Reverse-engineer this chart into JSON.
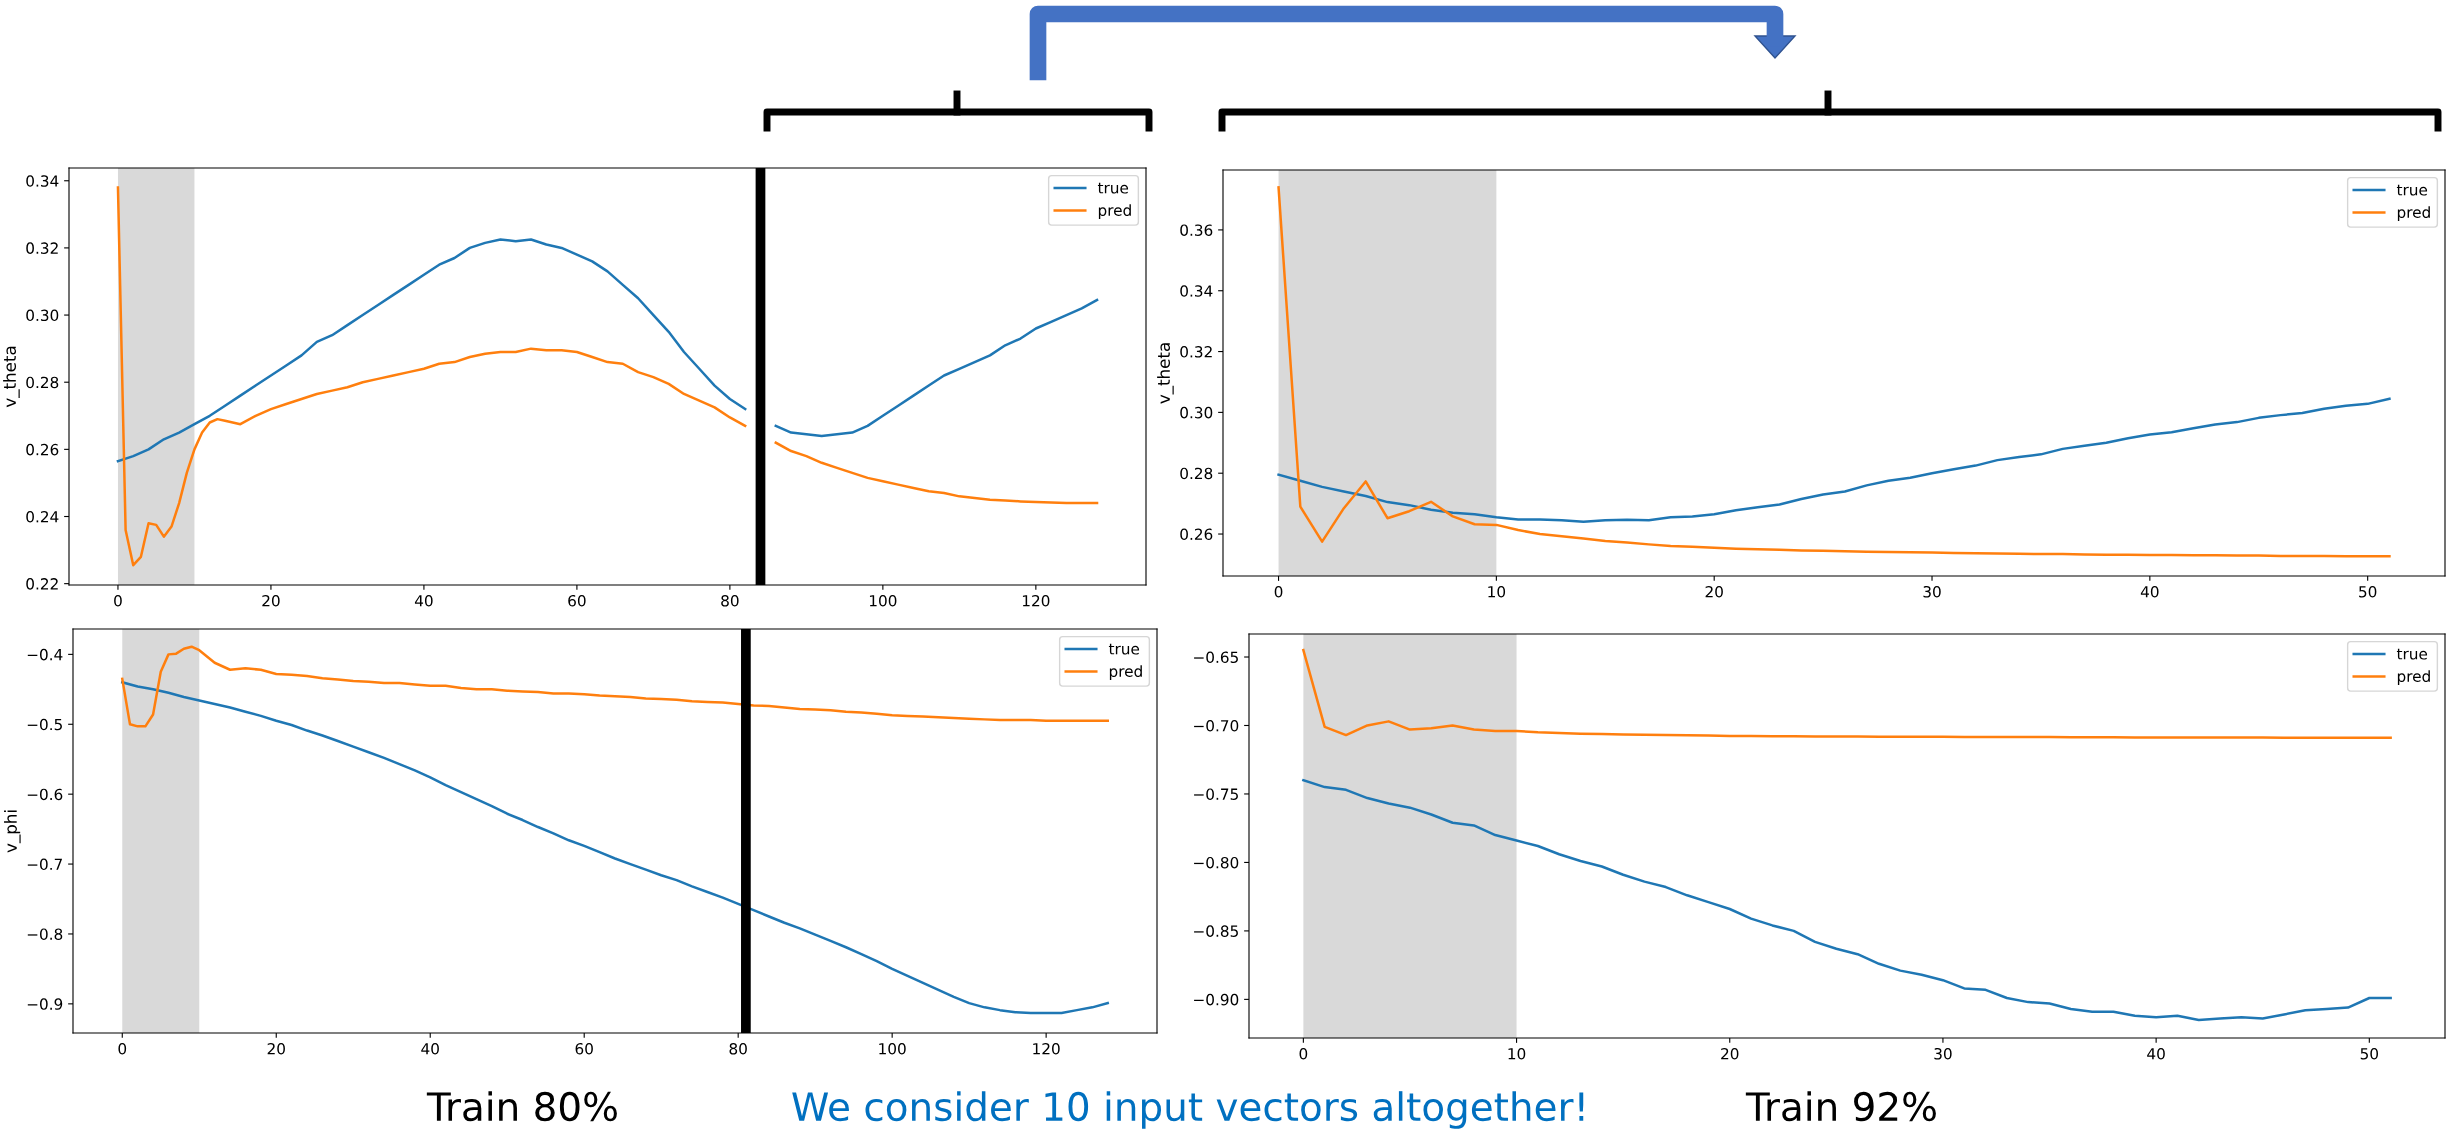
{
  "chart_data": [
    {
      "type": "line",
      "ylabel": "v_theta",
      "xlim": [
        -6.4,
        134.4
      ],
      "ylim": [
        0.2196,
        0.3438
      ],
      "xticks": [
        0,
        20,
        40,
        60,
        80,
        100,
        120
      ],
      "yticks": [
        0.22,
        0.24,
        0.26,
        0.28,
        {
          "value": 0.3,
          "label": "0.30"
        },
        0.32,
        0.34
      ],
      "grid": false,
      "legend": "top right",
      "bands": [
        {
          "axis": "x",
          "from": 0,
          "to": 10,
          "color": "#d9d9d9"
        }
      ],
      "ref_lines": [
        {
          "axis": "x",
          "value": 84,
          "color": "#000000"
        }
      ],
      "series": [
        {
          "name": "true",
          "color": "#1f77b4",
          "x": [
            0,
            2,
            4,
            6,
            8,
            10,
            12,
            14,
            16,
            18,
            20,
            22,
            24,
            26,
            28,
            30,
            32,
            34,
            36,
            38,
            40,
            42,
            44,
            46,
            48,
            50,
            52,
            54,
            56,
            58,
            60,
            62,
            64,
            66,
            68,
            70,
            72,
            74,
            76,
            78,
            80,
            82,
            84,
            86,
            88,
            90,
            92,
            94,
            96,
            98,
            100,
            102,
            104,
            106,
            108,
            110,
            112,
            114,
            116,
            118,
            120,
            122,
            124,
            126,
            128
          ],
          "values": [
            0.2565,
            0.258,
            0.26,
            0.263,
            0.265,
            0.2675,
            0.27,
            0.273,
            0.276,
            0.279,
            0.282,
            0.285,
            0.288,
            0.292,
            0.294,
            0.297,
            0.3,
            0.303,
            0.306,
            0.309,
            0.312,
            0.315,
            0.317,
            0.32,
            0.3215,
            0.3225,
            0.322,
            0.3225,
            0.321,
            0.32,
            0.318,
            0.316,
            0.313,
            0.309,
            0.305,
            0.3,
            0.295,
            0.289,
            0.284,
            0.279,
            0.275,
            0.272,
            null,
            0.267,
            0.265,
            0.2645,
            0.264,
            0.2645,
            0.265,
            0.267,
            0.27,
            0.273,
            0.276,
            0.279,
            0.282,
            0.284,
            0.286,
            0.288,
            0.291,
            0.293,
            0.296,
            0.298,
            0.3,
            0.302,
            0.3045
          ]
        },
        {
          "name": "pred",
          "color": "#ff7f0e",
          "x": [
            0,
            1,
            2,
            3,
            4,
            5,
            6,
            7,
            8,
            9,
            10,
            11,
            12,
            13,
            14,
            16,
            18,
            20,
            22,
            24,
            26,
            28,
            30,
            32,
            34,
            36,
            38,
            40,
            42,
            44,
            46,
            48,
            50,
            52,
            54,
            56,
            58,
            60,
            62,
            64,
            66,
            68,
            70,
            72,
            74,
            76,
            78,
            80,
            82,
            84,
            86,
            88,
            90,
            92,
            94,
            96,
            98,
            100,
            102,
            104,
            106,
            108,
            110,
            112,
            114,
            116,
            118,
            120,
            122,
            124,
            126,
            128
          ],
          "values": [
            0.338,
            0.236,
            0.2255,
            0.228,
            0.238,
            0.2375,
            0.234,
            0.237,
            0.244,
            0.253,
            0.26,
            0.265,
            0.268,
            0.269,
            0.2685,
            0.2675,
            0.27,
            0.272,
            0.2735,
            0.275,
            0.2765,
            0.2775,
            0.2785,
            0.28,
            0.281,
            0.282,
            0.283,
            0.284,
            0.2855,
            0.286,
            0.2875,
            0.2885,
            0.289,
            0.289,
            0.29,
            0.2895,
            0.2895,
            0.289,
            0.2875,
            0.286,
            0.2855,
            0.283,
            0.2815,
            0.2795,
            0.2765,
            0.2745,
            0.2725,
            0.2695,
            0.267,
            null,
            0.262,
            0.2595,
            0.258,
            0.256,
            0.2545,
            0.253,
            0.2515,
            0.2505,
            0.2495,
            0.2485,
            0.2475,
            0.247,
            0.246,
            0.2455,
            0.245,
            0.2448,
            0.2445,
            0.2443,
            0.2442,
            0.244,
            0.244,
            0.244
          ]
        }
      ]
    },
    {
      "type": "line",
      "ylabel": "v_theta",
      "xlim": [
        -2.55,
        53.55
      ],
      "ylim": [
        0.2462,
        0.3797
      ],
      "xticks": [
        0,
        10,
        20,
        30,
        40,
        50
      ],
      "yticks": [
        0.26,
        0.28,
        {
          "value": 0.3,
          "label": "0.30"
        },
        0.32,
        0.34,
        0.36
      ],
      "grid": false,
      "legend": "top right",
      "bands": [
        {
          "axis": "x",
          "from": 0,
          "to": 10,
          "color": "#d9d9d9"
        }
      ],
      "x": [
        0,
        1,
        2,
        3,
        4,
        5,
        6,
        7,
        8,
        9,
        10,
        11,
        12,
        13,
        14,
        15,
        16,
        17,
        18,
        19,
        20,
        21,
        22,
        23,
        24,
        25,
        26,
        27,
        28,
        29,
        30,
        31,
        32,
        33,
        34,
        35,
        36,
        37,
        38,
        39,
        40,
        41,
        42,
        43,
        44,
        45,
        46,
        47,
        48,
        49,
        50,
        51
      ],
      "series": [
        {
          "name": "true",
          "color": "#1f77b4",
          "values": [
            0.2795,
            0.2775,
            0.2755,
            0.274,
            0.2725,
            0.2705,
            0.2695,
            0.268,
            0.267,
            0.2665,
            0.2655,
            0.2648,
            0.2648,
            0.2645,
            0.264,
            0.2645,
            0.2647,
            0.2645,
            0.2655,
            0.2658,
            0.2665,
            0.2678,
            0.2688,
            0.2697,
            0.2715,
            0.273,
            0.274,
            0.276,
            0.2775,
            0.2785,
            0.28,
            0.2813,
            0.2825,
            0.2843,
            0.2853,
            0.2862,
            0.288,
            0.289,
            0.29,
            0.2915,
            0.2927,
            0.2935,
            0.2948,
            0.296,
            0.2968,
            0.2982,
            0.2991,
            0.2998,
            0.3012,
            0.3022,
            0.3028,
            0.3045
          ]
        },
        {
          "name": "pred",
          "color": "#ff7f0e",
          "values": [
            0.374,
            0.269,
            0.2575,
            0.2685,
            0.2773,
            0.2652,
            0.2675,
            0.2706,
            0.2658,
            0.2632,
            0.263,
            0.2613,
            0.26,
            0.2593,
            0.2585,
            0.2577,
            0.2572,
            0.2566,
            0.2561,
            0.2558,
            0.2555,
            0.2552,
            0.255,
            0.2548,
            0.2546,
            0.2545,
            0.2543,
            0.2542,
            0.2541,
            0.254,
            0.2539,
            0.2538,
            0.2537,
            0.2536,
            0.2535,
            0.2534,
            0.2534,
            0.2533,
            0.2532,
            0.2532,
            0.2531,
            0.2531,
            0.253,
            0.253,
            0.2529,
            0.2529,
            0.2528,
            0.2528,
            0.2528,
            0.2527,
            0.2527,
            0.2527
          ]
        }
      ]
    },
    {
      "type": "line",
      "ylabel": "v_phi",
      "xlim": [
        -6.4,
        134.4
      ],
      "ylim": [
        -0.9417,
        -0.3637
      ],
      "xticks": [
        0,
        20,
        40,
        60,
        80,
        100,
        120
      ],
      "yticks": [
        {
          "value": -0.9,
          "label": "−0.9"
        },
        {
          "value": -0.8,
          "label": "−0.8"
        },
        {
          "value": -0.7,
          "label": "−0.7"
        },
        {
          "value": -0.6,
          "label": "−0.6"
        },
        {
          "value": -0.5,
          "label": "−0.5"
        },
        {
          "value": -0.4,
          "label": "−0.4"
        }
      ],
      "grid": false,
      "legend": "top right",
      "bands": [
        {
          "axis": "x",
          "from": 0,
          "to": 10,
          "color": "#d9d9d9"
        }
      ],
      "ref_lines": [
        {
          "axis": "x",
          "value": 81,
          "color": "#000000"
        }
      ],
      "annotations": [
        "Train 80%",
        "We consider 10 input vectors altogether!"
      ],
      "series": [
        {
          "name": "true",
          "color": "#1f77b4",
          "x": [
            0,
            2,
            4,
            6,
            8,
            10,
            12,
            14,
            16,
            18,
            20,
            22,
            24,
            26,
            28,
            30,
            32,
            34,
            36,
            38,
            40,
            42,
            44,
            46,
            48,
            50,
            52,
            54,
            56,
            58,
            60,
            62,
            64,
            66,
            68,
            70,
            72,
            74,
            76,
            78,
            80,
            82,
            84,
            86,
            88,
            90,
            92,
            94,
            96,
            98,
            100,
            102,
            104,
            106,
            108,
            110,
            112,
            114,
            116,
            118,
            120,
            122,
            124,
            126,
            128
          ],
          "values": [
            -0.44,
            -0.446,
            -0.45,
            -0.455,
            -0.461,
            -0.466,
            -0.471,
            -0.476,
            -0.482,
            -0.488,
            -0.495,
            -0.501,
            -0.509,
            -0.516,
            -0.524,
            -0.532,
            -0.54,
            -0.548,
            -0.557,
            -0.566,
            -0.576,
            -0.587,
            -0.597,
            -0.607,
            -0.617,
            -0.628,
            -0.637,
            -0.647,
            -0.656,
            -0.666,
            -0.674,
            -0.683,
            -0.692,
            -0.7,
            -0.708,
            -0.716,
            -0.723,
            -0.732,
            -0.74,
            -0.748,
            -0.757,
            -0.766,
            -0.775,
            -0.784,
            -0.792,
            -0.801,
            -0.81,
            -0.819,
            -0.829,
            -0.839,
            -0.85,
            -0.86,
            -0.87,
            -0.88,
            -0.89,
            -0.899,
            -0.905,
            -0.909,
            -0.912,
            -0.913,
            -0.913,
            -0.913,
            -0.909,
            -0.905,
            -0.899
          ]
        },
        {
          "name": "pred",
          "color": "#ff7f0e",
          "x": [
            0,
            1,
            2,
            3,
            4,
            5,
            6,
            7,
            8,
            9,
            10,
            12,
            14,
            16,
            18,
            20,
            22,
            24,
            26,
            28,
            30,
            32,
            34,
            36,
            38,
            40,
            42,
            44,
            46,
            48,
            50,
            52,
            54,
            56,
            58,
            60,
            62,
            64,
            66,
            68,
            70,
            72,
            74,
            76,
            78,
            80,
            82,
            84,
            86,
            88,
            90,
            92,
            94,
            96,
            98,
            100,
            102,
            104,
            106,
            108,
            110,
            112,
            114,
            116,
            118,
            120,
            122,
            124,
            126,
            128
          ],
          "values": [
            -0.435,
            -0.5,
            -0.503,
            -0.503,
            -0.486,
            -0.425,
            -0.4,
            -0.399,
            -0.392,
            -0.389,
            -0.394,
            -0.412,
            -0.422,
            -0.42,
            -0.422,
            -0.428,
            -0.429,
            -0.431,
            -0.434,
            -0.436,
            -0.438,
            -0.439,
            -0.441,
            -0.441,
            -0.443,
            -0.445,
            -0.445,
            -0.448,
            -0.45,
            -0.45,
            -0.452,
            -0.453,
            -0.454,
            -0.456,
            -0.456,
            -0.457,
            -0.459,
            -0.46,
            -0.461,
            -0.463,
            -0.464,
            -0.465,
            -0.467,
            -0.468,
            -0.469,
            -0.471,
            -0.473,
            -0.474,
            -0.476,
            -0.478,
            -0.479,
            -0.48,
            -0.482,
            -0.483,
            -0.485,
            -0.487,
            -0.488,
            -0.489,
            -0.49,
            -0.491,
            -0.492,
            -0.493,
            -0.494,
            -0.494,
            -0.494,
            -0.495,
            -0.495,
            -0.495,
            -0.495,
            -0.495
          ]
        }
      ]
    },
    {
      "type": "line",
      "xlim": [
        -2.55,
        53.55
      ],
      "ylim": [
        -0.9282,
        -0.6332
      ],
      "xticks": [
        0,
        10,
        20,
        30,
        40,
        50
      ],
      "yticks": [
        {
          "value": -0.9,
          "label": "−0.90"
        },
        {
          "value": -0.85,
          "label": "−0.85"
        },
        {
          "value": -0.8,
          "label": "−0.80"
        },
        {
          "value": -0.75,
          "label": "−0.75"
        },
        {
          "value": -0.7,
          "label": "−0.70"
        },
        {
          "value": -0.65,
          "label": "−0.65"
        }
      ],
      "grid": false,
      "legend": "top right",
      "bands": [
        {
          "axis": "x",
          "from": 0,
          "to": 10,
          "color": "#d9d9d9"
        }
      ],
      "annotations": [
        "Train 92%"
      ],
      "x": [
        0,
        1,
        2,
        3,
        4,
        5,
        6,
        7,
        8,
        9,
        10,
        11,
        12,
        13,
        14,
        15,
        16,
        17,
        18,
        19,
        20,
        21,
        22,
        23,
        24,
        25,
        26,
        27,
        28,
        29,
        30,
        31,
        32,
        33,
        34,
        35,
        36,
        37,
        38,
        39,
        40,
        41,
        42,
        43,
        44,
        45,
        46,
        47,
        48,
        49,
        50,
        51
      ],
      "series": [
        {
          "name": "true",
          "color": "#1f77b4",
          "values": [
            -0.74,
            -0.745,
            -0.747,
            -0.753,
            -0.757,
            -0.76,
            -0.765,
            -0.771,
            -0.773,
            -0.78,
            -0.784,
            -0.788,
            -0.794,
            -0.799,
            -0.803,
            -0.809,
            -0.814,
            -0.818,
            -0.824,
            -0.829,
            -0.834,
            -0.841,
            -0.846,
            -0.85,
            -0.858,
            -0.863,
            -0.867,
            -0.874,
            -0.879,
            -0.882,
            -0.886,
            -0.892,
            -0.893,
            -0.899,
            -0.902,
            -0.903,
            -0.907,
            -0.909,
            -0.909,
            -0.912,
            -0.913,
            -0.912,
            -0.915,
            -0.914,
            -0.913,
            -0.914,
            -0.911,
            -0.908,
            -0.907,
            -0.906,
            -0.899,
            -0.899
          ]
        },
        {
          "name": "pred",
          "color": "#ff7f0e",
          "values": [
            -0.645,
            -0.701,
            -0.707,
            -0.7,
            -0.697,
            -0.703,
            -0.702,
            -0.7,
            -0.703,
            -0.704,
            -0.704,
            -0.705,
            -0.7055,
            -0.706,
            -0.7063,
            -0.7066,
            -0.7068,
            -0.707,
            -0.7072,
            -0.7074,
            -0.7076,
            -0.7077,
            -0.7078,
            -0.7079,
            -0.708,
            -0.708,
            -0.7081,
            -0.7082,
            -0.7082,
            -0.7083,
            -0.7083,
            -0.7084,
            -0.7084,
            -0.7085,
            -0.7085,
            -0.7085,
            -0.7086,
            -0.7086,
            -0.7086,
            -0.7087,
            -0.7087,
            -0.7087,
            -0.7088,
            -0.7088,
            -0.7088,
            -0.7088,
            -0.7089,
            -0.7089,
            -0.7089,
            -0.7089,
            -0.709,
            -0.709
          ]
        }
      ]
    }
  ]
}
